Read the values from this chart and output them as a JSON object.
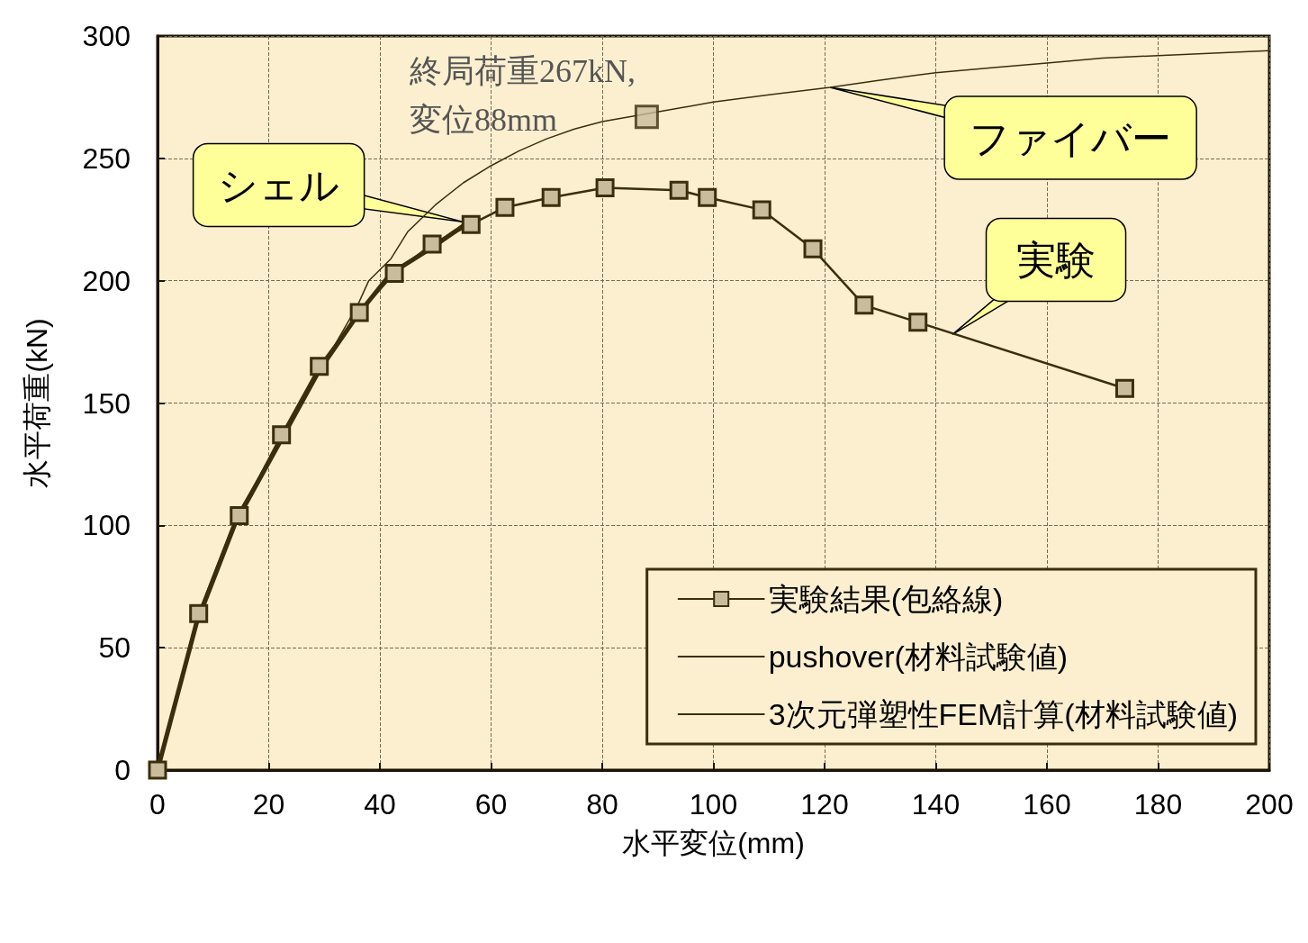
{
  "chart_data": {
    "type": "line",
    "xlabel": "水平変位(mm)",
    "ylabel": "水平荷重(kN)",
    "xlim": [
      0,
      200
    ],
    "xticks": [
      0,
      20,
      40,
      60,
      80,
      100,
      120,
      140,
      160,
      180,
      200
    ],
    "ylim": [
      0,
      300
    ],
    "yticks": [
      0,
      50,
      100,
      150,
      200,
      250,
      300
    ],
    "grid": true,
    "legend": "bottom right",
    "series": [
      {
        "name": "実験結果(包絡線)",
        "color": "#3b2e0c",
        "marker": "square",
        "line_style": "solid",
        "x": [
          0,
          7.4,
          14.7,
          22.3,
          29.1,
          36.3,
          42.6,
          49.4,
          56.4,
          62.5,
          70.8,
          80.5,
          93.8,
          98.9,
          108.7,
          117.9,
          127.1,
          136.8,
          174
        ],
        "values": [
          0,
          64,
          104,
          137,
          165,
          187,
          203,
          215,
          223,
          230,
          234,
          238,
          237,
          234,
          229,
          213,
          190,
          183,
          156
        ]
      },
      {
        "name": "pushover(材料試験値)",
        "color": "#3b2e0c",
        "marker": "none",
        "line_style": "solid",
        "x": [
          0,
          7,
          14,
          36,
          38,
          42,
          45,
          50,
          55,
          60,
          65,
          70,
          75,
          80,
          95,
          100,
          110,
          121,
          130,
          140,
          150,
          160,
          170,
          180,
          190,
          200
        ],
        "values": [
          0,
          62,
          103,
          190,
          200,
          209,
          220,
          231,
          240,
          247,
          253,
          258,
          262,
          265,
          271,
          273,
          276,
          279,
          282,
          285,
          287,
          289,
          291,
          292,
          293,
          294
        ]
      },
      {
        "name": "3次元弾塑性FEM計算(材料試験値)",
        "color": "#3b2e0c",
        "marker": "none",
        "line_style": "solid",
        "x": [
          0,
          7,
          14,
          22,
          29,
          36,
          42,
          49,
          56
        ],
        "values": [
          0,
          60,
          101,
          134,
          163,
          186,
          203,
          213,
          224
        ]
      },
      {
        "type": "scatter",
        "color": "#3b2e0c",
        "marker": "square",
        "x": [
          88
        ],
        "values": [
          267
        ]
      }
    ],
    "annotations": [
      "終局荷重267kN,\n変位88mm",
      {
        "text": "シェル",
        "x": 55,
        "y": 224
      },
      {
        "text": "ファイバー",
        "x": 121,
        "y": 279
      },
      {
        "text": "実験",
        "x": 143,
        "y": 178
      }
    ]
  }
}
